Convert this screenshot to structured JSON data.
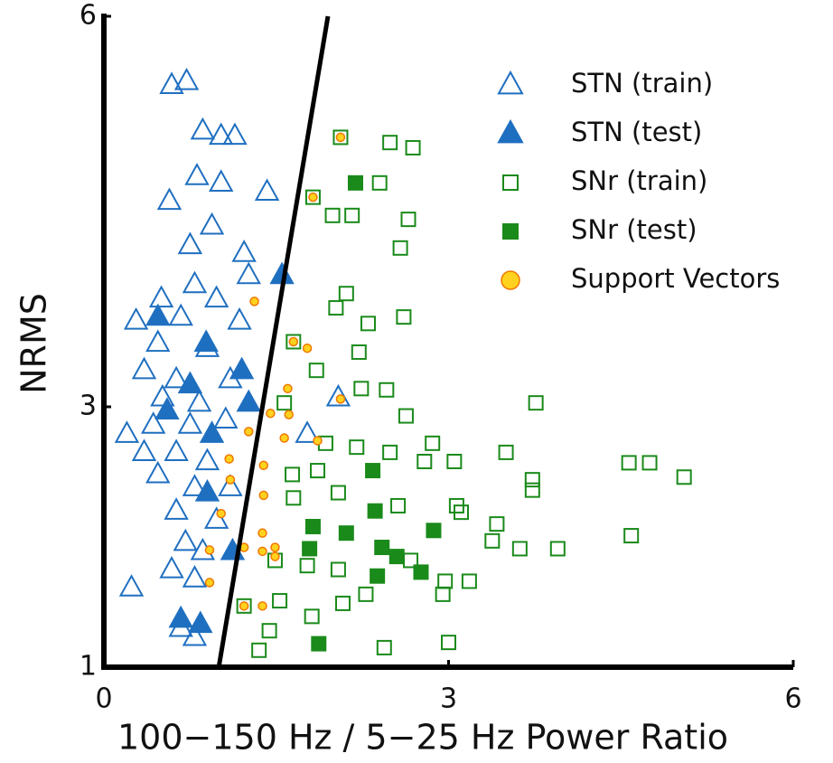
{
  "chart_data": {
    "type": "scatter",
    "xlabel": "100−150 Hz / 5−25 Hz Power Ratio",
    "ylabel": "NRMS",
    "xlim": [
      0,
      6
    ],
    "ylim": [
      1,
      6
    ],
    "xticks": [
      0,
      3,
      6
    ],
    "yticks": [
      1,
      3,
      6
    ],
    "grid": false,
    "legend": "upper right",
    "decision_line": {
      "x": [
        1.0,
        1.95
      ],
      "y": [
        1,
        6
      ],
      "color": "#000000"
    },
    "series": [
      {
        "name": "STN (train)",
        "color": "#1f6fc0",
        "marker": "triangle",
        "filled": false,
        "x": [
          0.59,
          0.72,
          0.86,
          1.02,
          1.14,
          0.81,
          1.02,
          0.57,
          1.42,
          0.94,
          0.75,
          1.22,
          1.26,
          0.5,
          0.79,
          0.98,
          0.28,
          0.67,
          1.18,
          0.47,
          0.9,
          0.35,
          0.63,
          1.1,
          0.51,
          0.83,
          0.2,
          0.43,
          0.75,
          1.06,
          0.35,
          0.63,
          0.9,
          0.47,
          0.79,
          1.1,
          0.63,
          0.98,
          0.71,
          0.86,
          0.59,
          0.24,
          0.79,
          0.67,
          0.79,
          2.04,
          1.77
        ],
        "y": [
          5.47,
          5.5,
          5.12,
          5.08,
          5.08,
          4.77,
          4.72,
          4.58,
          4.65,
          4.39,
          4.24,
          4.18,
          4.01,
          3.83,
          3.94,
          3.83,
          3.66,
          3.69,
          3.66,
          3.49,
          3.45,
          3.28,
          3.21,
          3.21,
          3.07,
          3.03,
          2.79,
          2.86,
          2.86,
          2.9,
          2.65,
          2.65,
          2.58,
          2.48,
          2.38,
          2.38,
          2.2,
          2.13,
          1.96,
          1.89,
          1.75,
          1.61,
          1.68,
          1.3,
          1.23,
          3.07,
          2.79
        ]
      },
      {
        "name": "STN (test)",
        "color": "#1f6fc0",
        "marker": "triangle",
        "filled": true,
        "x": [
          1.55,
          1.2,
          0.47,
          0.89,
          0.75,
          1.26,
          0.55,
          0.94,
          0.9,
          1.12,
          0.67,
          0.84
        ],
        "y": [
          4.01,
          3.28,
          3.69,
          3.49,
          3.17,
          3.03,
          2.97,
          2.79,
          2.34,
          1.89,
          1.37,
          1.33
        ]
      },
      {
        "name": "SNr (train)",
        "color": "#1a8a1a",
        "marker": "square",
        "filled": false,
        "x": [
          2.06,
          2.49,
          2.69,
          2.4,
          1.82,
          1.99,
          2.16,
          2.65,
          2.58,
          2.11,
          2.02,
          2.61,
          2.3,
          1.65,
          2.22,
          1.85,
          1.57,
          2.24,
          2.46,
          3.76,
          2.63,
          2.86,
          1.93,
          2.2,
          2.49,
          1.64,
          1.86,
          2.79,
          3.05,
          3.5,
          3.73,
          4.57,
          4.75,
          5.05,
          2.04,
          1.65,
          3.73,
          2.56,
          3.07,
          3.11,
          3.42,
          3.38,
          3.62,
          3.95,
          4.59,
          1.49,
          1.77,
          2.04,
          2.67,
          2.97,
          3.18,
          2.28,
          2.95,
          1.22,
          1.53,
          2.08,
          1.81,
          1.44,
          2.44,
          3.0,
          1.35
        ],
        "y": [
          5.07,
          5.03,
          4.99,
          4.72,
          4.61,
          4.47,
          4.47,
          4.44,
          4.22,
          3.87,
          3.76,
          3.69,
          3.64,
          3.5,
          3.42,
          3.28,
          3.03,
          3.14,
          3.13,
          3.03,
          2.93,
          2.72,
          2.72,
          2.69,
          2.65,
          2.48,
          2.51,
          2.58,
          2.58,
          2.65,
          2.44,
          2.57,
          2.57,
          2.46,
          2.34,
          2.3,
          2.36,
          2.24,
          2.24,
          2.19,
          2.1,
          1.97,
          1.91,
          1.91,
          2.01,
          1.82,
          1.78,
          1.75,
          1.82,
          1.66,
          1.66,
          1.56,
          1.56,
          1.47,
          1.51,
          1.49,
          1.39,
          1.28,
          1.15,
          1.19,
          1.13
        ]
      },
      {
        "name": "SNr (test)",
        "color": "#1a8a1a",
        "marker": "square",
        "filled": true,
        "x": [
          2.19,
          2.34,
          2.36,
          1.82,
          2.11,
          2.42,
          2.87,
          1.79,
          2.55,
          2.76,
          2.38,
          1.87
        ],
        "y": [
          4.72,
          2.51,
          2.2,
          2.08,
          2.03,
          1.92,
          2.05,
          1.91,
          1.85,
          1.73,
          1.7,
          1.18
        ]
      },
      {
        "name": "Support Vectors",
        "color": "#ffd21f",
        "edgecolor": "#f07800",
        "marker": "circle",
        "filled": true,
        "x": [
          2.06,
          1.82,
          1.31,
          1.65,
          1.77,
          1.6,
          1.45,
          1.61,
          2.06,
          1.26,
          1.57,
          1.86,
          1.09,
          1.39,
          1.1,
          1.39,
          1.02,
          1.38,
          0.92,
          1.22,
          1.38,
          1.49,
          0.92,
          1.22,
          1.38,
          1.49
        ],
        "y": [
          5.07,
          4.61,
          3.81,
          3.5,
          3.45,
          3.14,
          2.95,
          2.94,
          3.06,
          2.81,
          2.76,
          2.74,
          2.6,
          2.55,
          2.44,
          2.32,
          2.18,
          2.03,
          1.9,
          1.92,
          1.89,
          1.92,
          1.65,
          1.47,
          1.47,
          1.85
        ]
      }
    ]
  }
}
